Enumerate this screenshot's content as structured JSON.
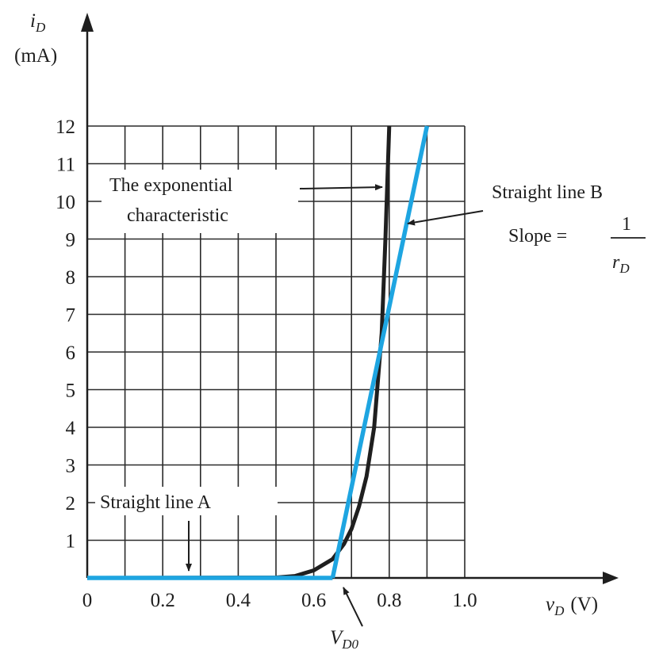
{
  "chart_data": {
    "type": "line",
    "xlabel": {
      "symbol": "v",
      "subscript": "D",
      "unit": "(V)"
    },
    "ylabel": {
      "symbol": "i",
      "subscript": "D",
      "unit": "(mA)"
    },
    "xlim": [
      0,
      1.0
    ],
    "ylim": [
      0,
      12
    ],
    "x_ticks": [
      {
        "value": 0,
        "label": "0"
      },
      {
        "value": 0.2,
        "label": "0.2"
      },
      {
        "value": 0.4,
        "label": "0.4"
      },
      {
        "value": 0.6,
        "label": "0.6"
      },
      {
        "value": 0.8,
        "label": "0.8"
      },
      {
        "value": 1.0,
        "label": "1.0"
      }
    ],
    "y_ticks": [
      {
        "value": 1,
        "label": "1"
      },
      {
        "value": 2,
        "label": "2"
      },
      {
        "value": 3,
        "label": "3"
      },
      {
        "value": 4,
        "label": "4"
      },
      {
        "value": 5,
        "label": "5"
      },
      {
        "value": 6,
        "label": "6"
      },
      {
        "value": 7,
        "label": "7"
      },
      {
        "value": 8,
        "label": "8"
      },
      {
        "value": 9,
        "label": "9"
      },
      {
        "value": 10,
        "label": "10"
      },
      {
        "value": 11,
        "label": "11"
      },
      {
        "value": 12,
        "label": "12"
      }
    ],
    "grid": {
      "x_step": 0.1,
      "y_step": 1,
      "x_max": 1.0,
      "y_max": 12
    },
    "series": [
      {
        "id": "exponential",
        "color": "#1f1f1f",
        "points": [
          [
            0,
            0
          ],
          [
            0.5,
            0.01
          ],
          [
            0.55,
            0.05
          ],
          [
            0.6,
            0.2
          ],
          [
            0.65,
            0.5
          ],
          [
            0.68,
            0.9
          ],
          [
            0.7,
            1.3
          ],
          [
            0.72,
            1.9
          ],
          [
            0.74,
            2.7
          ],
          [
            0.76,
            4.0
          ],
          [
            0.78,
            6.5
          ],
          [
            0.79,
            9.0
          ],
          [
            0.8,
            12.0
          ]
        ]
      },
      {
        "id": "line-a",
        "color": "#1ea5e1",
        "points": [
          [
            0,
            0
          ],
          [
            0.65,
            0
          ]
        ]
      },
      {
        "id": "line-b",
        "color": "#1ea5e1",
        "points": [
          [
            0.65,
            0
          ],
          [
            0.9,
            12
          ]
        ]
      }
    ],
    "annotations": {
      "exponential_lines": [
        "The exponential",
        "characteristic"
      ],
      "line_b": "Straight line B",
      "slope_label": "Slope =",
      "slope_num": "1",
      "slope_den": {
        "symbol": "r",
        "subscript": "D"
      },
      "line_a": "Straight line A",
      "vd0": {
        "symbol": "V",
        "subscript": "D0"
      }
    }
  }
}
